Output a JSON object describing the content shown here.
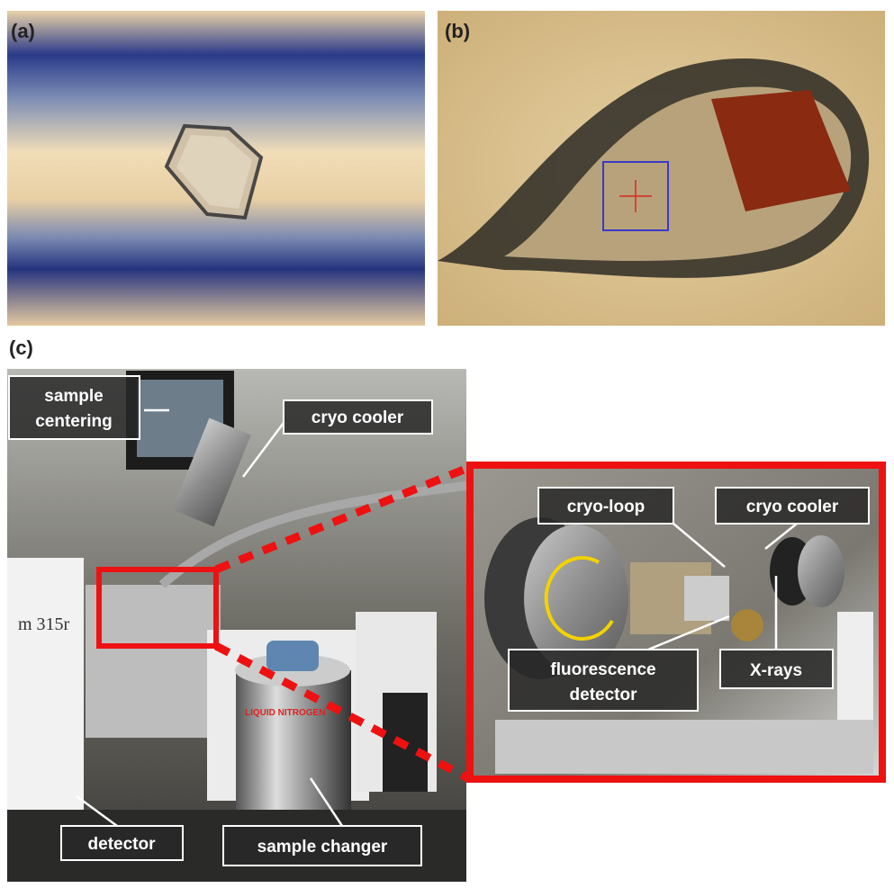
{
  "panels": {
    "a": {
      "label": "(a)"
    },
    "b": {
      "label": "(b)"
    },
    "c": {
      "label": "(c)"
    }
  },
  "callouts": {
    "sample_centering": [
      "sample",
      "centering"
    ],
    "cryo_cooler": "cryo cooler",
    "detector": "detector",
    "sample_changer": "sample changer"
  },
  "inset_callouts": {
    "cryo_loop": "cryo-loop",
    "cryo_cooler": "cryo cooler",
    "fluorescence_detector": [
      "fluorescence",
      "detector"
    ],
    "x_rays": "X-rays"
  },
  "photo_texts": {
    "instrument": "m 315r",
    "dewar": "LIQUID NITROGEN"
  }
}
